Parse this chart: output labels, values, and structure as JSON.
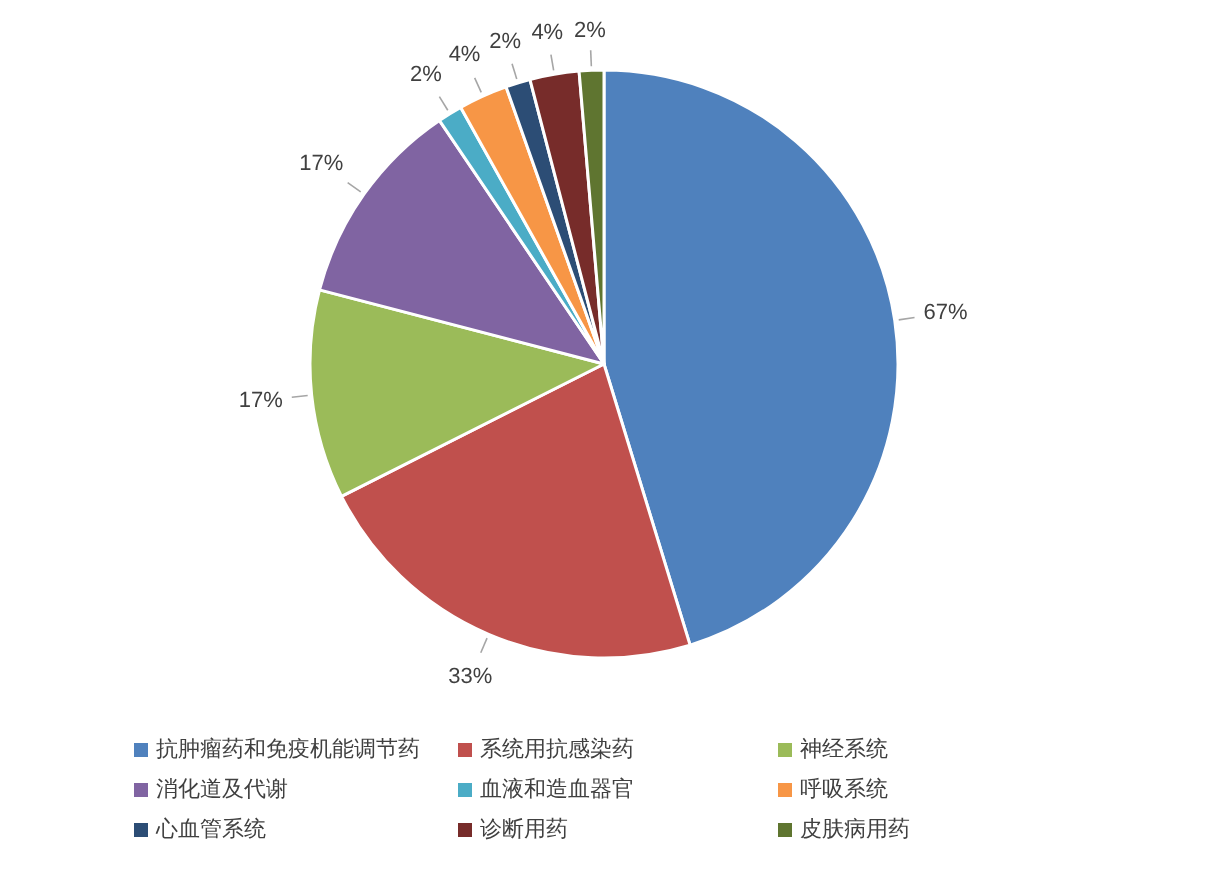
{
  "chart_data": {
    "type": "pie",
    "categories": [
      "抗肿瘤药和免疫机能调节药",
      "系统用抗感染药",
      "神经系统",
      "消化道及代谢",
      "血液和造血器官",
      "呼吸系统",
      "心血管系统",
      "诊断用药",
      "皮肤病用药"
    ],
    "values": [
      67,
      33,
      17,
      17,
      2,
      4,
      2,
      4,
      2
    ],
    "value_labels": [
      "67%",
      "33%",
      "17%",
      "17%",
      "2%",
      "4%",
      "2%",
      "4%",
      "2%"
    ],
    "colors": [
      "#4f81bd",
      "#c0504d",
      "#9bbb59",
      "#8064a2",
      "#4bacc6",
      "#f79646",
      "#2c4d75",
      "#772c2a",
      "#5f7530"
    ],
    "legend": "bottom"
  }
}
